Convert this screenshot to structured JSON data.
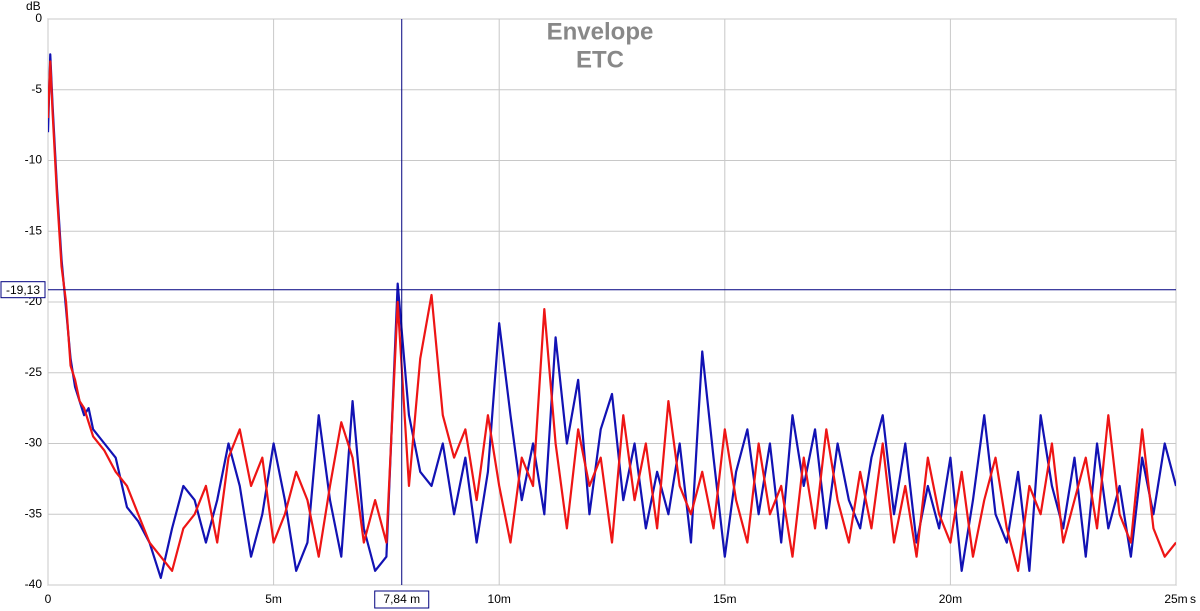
{
  "chart_data": {
    "type": "line",
    "title": "Envelope",
    "subtitle": "ETC",
    "y_label": "dB",
    "x_unit": "s",
    "xlim": [
      0,
      25
    ],
    "ylim": [
      -40,
      0
    ],
    "xticks": [
      0,
      {
        "value": 5,
        "label": "5m"
      },
      {
        "value": 10,
        "label": "10m"
      },
      {
        "value": 15,
        "label": "15m"
      },
      {
        "value": 20,
        "label": "20m"
      },
      {
        "value": 25,
        "label": "25m"
      }
    ],
    "yticks": [
      0,
      -5,
      -10,
      -15,
      -20,
      -25,
      -30,
      -35,
      -40
    ],
    "grid": true,
    "cursor": {
      "color": "#000080",
      "x": {
        "value": 7.84,
        "label": "7,84 m"
      },
      "y": {
        "value": -19.13,
        "label": "-19,13"
      }
    },
    "x": [
      0,
      0.05,
      0.1,
      0.2,
      0.3,
      0.4,
      0.5,
      0.6,
      0.7,
      0.8,
      0.9,
      1,
      1.25,
      1.5,
      1.75,
      2,
      2.25,
      2.5,
      2.75,
      3,
      3.25,
      3.5,
      3.75,
      4,
      4.25,
      4.5,
      4.75,
      5,
      5.25,
      5.5,
      5.75,
      6,
      6.25,
      6.5,
      6.75,
      7,
      7.25,
      7.5,
      7.75,
      8,
      8.25,
      8.5,
      8.75,
      9,
      9.25,
      9.5,
      9.75,
      10,
      10.25,
      10.5,
      10.75,
      11,
      11.25,
      11.5,
      11.75,
      12,
      12.25,
      12.5,
      12.75,
      13,
      13.25,
      13.5,
      13.75,
      14,
      14.25,
      14.5,
      14.75,
      15,
      15.25,
      15.5,
      15.75,
      16,
      16.25,
      16.5,
      16.75,
      17,
      17.25,
      17.5,
      17.75,
      18,
      18.25,
      18.5,
      18.75,
      19,
      19.25,
      19.5,
      19.75,
      20,
      20.25,
      20.5,
      20.75,
      21,
      21.25,
      21.5,
      21.75,
      22,
      22.25,
      22.5,
      22.75,
      23,
      23.25,
      23.5,
      23.75,
      24,
      24.25,
      24.5,
      24.75,
      25
    ],
    "series": [
      {
        "color": "#1212b4",
        "values": [
          -8,
          -2.5,
          -6,
          -12,
          -17,
          -20.5,
          -24,
          -26,
          -27,
          -28,
          -27.5,
          -29,
          -30,
          -31,
          -34.5,
          -35.5,
          -37,
          -39.5,
          -36,
          -33,
          -34,
          -37,
          -34,
          -30,
          -33,
          -38,
          -35,
          -30,
          -34,
          -39,
          -37,
          -28,
          -34,
          -38,
          -27,
          -36,
          -39,
          -38,
          -18.7,
          -28,
          -32,
          -33,
          -30,
          -35,
          -31,
          -37,
          -32,
          -21.5,
          -28,
          -34,
          -30,
          -35,
          -22.5,
          -30,
          -25.5,
          -35,
          -29,
          -26.5,
          -34,
          -30,
          -36,
          -32,
          -35,
          -30,
          -37,
          -23.5,
          -31,
          -38,
          -32,
          -29,
          -35,
          -30,
          -37,
          -28,
          -33,
          -29,
          -36,
          -30,
          -34,
          -36,
          -31,
          -28,
          -35,
          -30,
          -37,
          -33,
          -36,
          -31,
          -39,
          -34,
          -28,
          -35,
          -37,
          -32,
          -39,
          -28,
          -33,
          -36,
          -31,
          -38,
          -30,
          -36,
          -33,
          -38,
          -31,
          -35,
          -30,
          -33
        ]
      },
      {
        "color": "#ee1515",
        "values": [
          -7,
          -3,
          -6.5,
          -12.5,
          -17.5,
          -20,
          -24.5,
          -25.5,
          -27,
          -27.5,
          -28.5,
          -29.5,
          -30.5,
          -32,
          -33,
          -35,
          -37,
          -38,
          -39,
          -36,
          -35,
          -33,
          -37,
          -31,
          -29,
          -33,
          -31,
          -37,
          -35,
          -32,
          -34,
          -38,
          -33,
          -28.5,
          -31,
          -37,
          -34,
          -37,
          -20,
          -33,
          -24,
          -19.5,
          -28,
          -31,
          -29,
          -34,
          -28,
          -33,
          -37,
          -31,
          -33,
          -20.5,
          -30,
          -36,
          -29,
          -33,
          -31,
          -37,
          -28,
          -34,
          -30,
          -36,
          -27,
          -33,
          -35,
          -32,
          -36,
          -29,
          -34,
          -37,
          -30,
          -35,
          -33,
          -38,
          -31,
          -36,
          -29,
          -34,
          -37,
          -32,
          -36,
          -30,
          -37,
          -33,
          -38,
          -31,
          -35,
          -37,
          -32,
          -38,
          -34,
          -31,
          -36,
          -39,
          -33,
          -35,
          -30,
          -37,
          -34,
          -31,
          -36,
          -28,
          -35,
          -37,
          -29,
          -36,
          -38,
          -37
        ]
      }
    ]
  }
}
